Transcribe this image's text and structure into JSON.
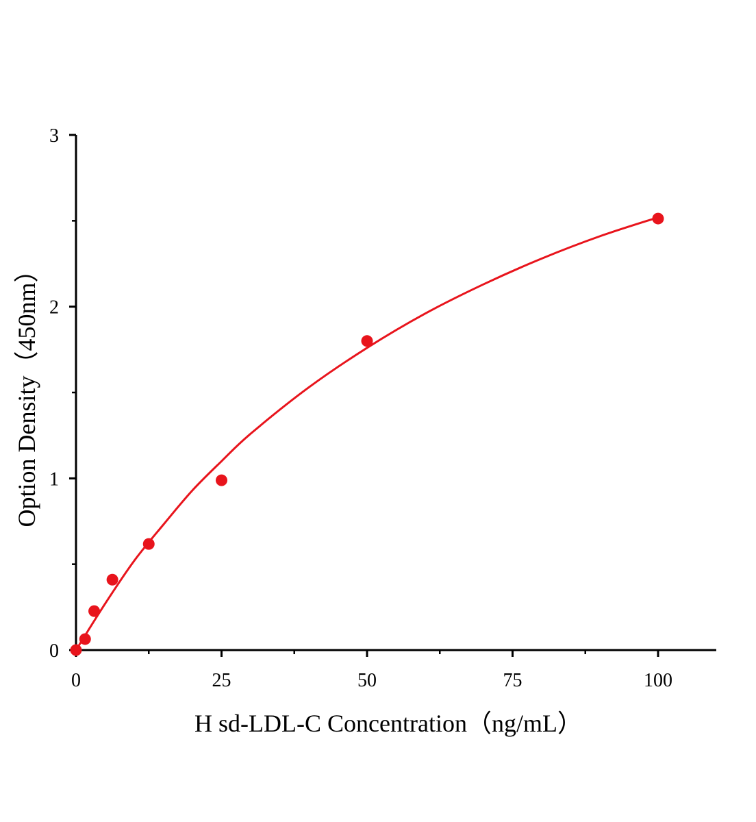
{
  "chart_data": {
    "type": "scatter",
    "title": "",
    "xlabel": "H sd-LDL-C Concentration（ng/mL）",
    "ylabel": "Option Density（450nm）",
    "xlim": [
      0,
      110
    ],
    "ylim": [
      0,
      3
    ],
    "x_ticks": [
      0,
      25,
      50,
      75,
      100
    ],
    "x_tick_labels": [
      "0",
      "25",
      "50",
      "75",
      "100"
    ],
    "x_minor_ticks": [
      12.5,
      37.5,
      62.5,
      87.5
    ],
    "y_ticks": [
      0,
      1,
      2,
      3
    ],
    "y_tick_labels": [
      "0",
      "1",
      "2",
      "3"
    ],
    "y_minor_ticks": [
      0.5,
      1.5,
      2.5
    ],
    "grid": false,
    "color": "#e8141c",
    "points": {
      "x": [
        0,
        1.5625,
        3.125,
        6.25,
        12.5,
        25,
        50,
        100
      ],
      "y": [
        0.0,
        0.064,
        0.227,
        0.41,
        0.618,
        0.989,
        1.8,
        2.513
      ]
    },
    "fit_curve": {
      "x": [
        0,
        5,
        10,
        15,
        20,
        25,
        30,
        40,
        50,
        60,
        70,
        80,
        90,
        100
      ],
      "y": [
        0,
        0.27,
        0.52,
        0.73,
        0.93,
        1.1,
        1.26,
        1.53,
        1.76,
        1.96,
        2.13,
        2.28,
        2.41,
        2.52
      ]
    }
  }
}
